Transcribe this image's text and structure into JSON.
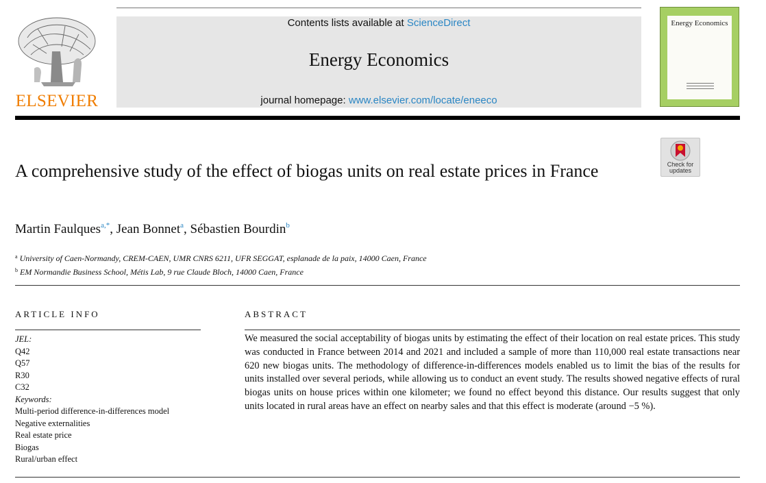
{
  "header": {
    "publisher": "ELSEVIER",
    "contents_prefix": "Contents lists available at ",
    "contents_link": "ScienceDirect",
    "journal": "Energy Economics",
    "homepage_prefix": "journal homepage: ",
    "homepage_link": "www.elsevier.com/locate/eneeco",
    "cover_title": "Energy Economics",
    "colors": {
      "brand_orange": "#f07d00",
      "link_blue": "#2a86c4",
      "cover_green": "#a6cf63",
      "banner_gray": "#e6e6e6"
    }
  },
  "badge": {
    "label": "Check for updates",
    "icon": "bookmark-ribbon-icon"
  },
  "article": {
    "title": "A comprehensive study of the effect of biogas units on real estate prices in France",
    "authors": [
      {
        "name": "Martin Faulques",
        "sup": "a,*"
      },
      {
        "name": "Jean Bonnet",
        "sup": "a"
      },
      {
        "name": "Sébastien Bourdin",
        "sup": "b"
      }
    ],
    "separator": ", ",
    "affiliations": [
      {
        "mark": "a",
        "text": "University of Caen-Normandy, CREM-CAEN, UMR CNRS 6211, UFR SEGGAT, esplanade de la paix, 14000 Caen, France"
      },
      {
        "mark": "b",
        "text": "EM Normandie Business School, Métis Lab, 9 rue Claude Bloch, 14000 Caen, France"
      }
    ]
  },
  "article_info": {
    "heading": "ARTICLE INFO",
    "jel_label": "JEL:",
    "jel_codes": [
      "Q42",
      "Q57",
      "R30",
      "C32"
    ],
    "keywords_label": "Keywords:",
    "keywords": [
      "Multi-period difference-in-differences model",
      "Negative externalities",
      "Real estate price",
      "Biogas",
      "Rural/urban effect"
    ]
  },
  "abstract": {
    "heading": "ABSTRACT",
    "text": "We measured the social acceptability of biogas units by estimating the effect of their location on real estate prices. This study was conducted in France between 2014 and 2021 and included a sample of more than 110,000 real estate transactions near 620 new biogas units. The methodology of difference-in-differences models enabled us to limit the bias of the results for units installed over several periods, while allowing us to conduct an event study. The results showed negative effects of rural biogas units on house prices within one kilometer; we found no effect beyond this distance. Our results suggest that only units located in rural areas have an effect on nearby sales and that this effect is moderate (around −5 %)."
  }
}
